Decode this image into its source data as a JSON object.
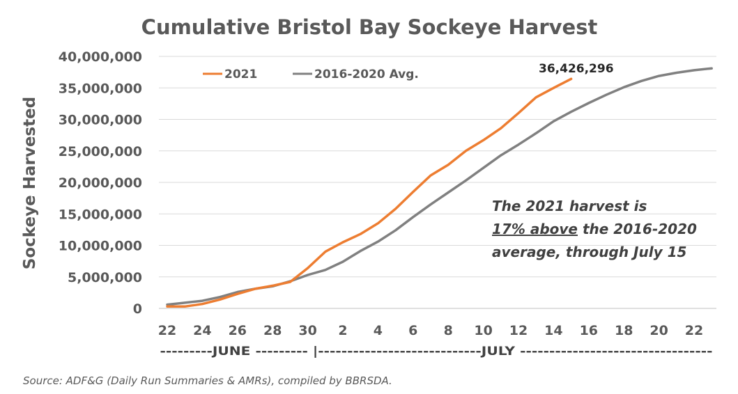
{
  "chart_data": {
    "type": "line",
    "title": "Cumulative Bristol Bay Sockeye Harvest",
    "ylabel": "Sockeye Harvested",
    "ylim": [
      0,
      40000000
    ],
    "y_ticks": [
      "0",
      "5,000,000",
      "10,000,000",
      "15,000,000",
      "20,000,000",
      "25,000,000",
      "30,000,000",
      "35,000,000",
      "40,000,000"
    ],
    "x_start": "June 22",
    "x_end": "July 23",
    "x_tick_labels": [
      "22",
      "24",
      "26",
      "28",
      "30",
      "2",
      "4",
      "6",
      "8",
      "10",
      "12",
      "14",
      "16",
      "18",
      "20",
      "22"
    ],
    "month_label": "---------JUNE --------- |----------------------------JULY ---------------------------------",
    "grid": "horizontal",
    "legend_position": "top-left",
    "series": [
      {
        "name": "2021",
        "color": "#ED7D31",
        "x": [
          "Jun 22",
          "Jun 23",
          "Jun 24",
          "Jun 25",
          "Jun 26",
          "Jun 27",
          "Jun 28",
          "Jun 29",
          "Jun 30",
          "Jul 1",
          "Jul 2",
          "Jul 3",
          "Jul 4",
          "Jul 5",
          "Jul 6",
          "Jul 7",
          "Jul 8",
          "Jul 9",
          "Jul 10",
          "Jul 11",
          "Jul 12",
          "Jul 13",
          "Jul 14",
          "Jul 15"
        ],
        "values": [
          300000,
          300000,
          700000,
          1400000,
          2300000,
          3100000,
          3600000,
          4200000,
          6400000,
          9000000,
          10500000,
          11800000,
          13500000,
          15800000,
          18500000,
          21100000,
          22800000,
          25000000,
          26700000,
          28600000,
          31000000,
          33500000,
          35000000,
          36426296
        ]
      },
      {
        "name": "2016-2020 Avg.",
        "color": "#808080",
        "x": [
          "Jun 22",
          "Jun 23",
          "Jun 24",
          "Jun 25",
          "Jun 26",
          "Jun 27",
          "Jun 28",
          "Jun 29",
          "Jun 30",
          "Jul 1",
          "Jul 2",
          "Jul 3",
          "Jul 4",
          "Jul 5",
          "Jul 6",
          "Jul 7",
          "Jul 8",
          "Jul 9",
          "Jul 10",
          "Jul 11",
          "Jul 12",
          "Jul 13",
          "Jul 14",
          "Jul 15",
          "Jul 16",
          "Jul 17",
          "Jul 18",
          "Jul 19",
          "Jul 20",
          "Jul 21",
          "Jul 22",
          "Jul 23"
        ],
        "values": [
          600000,
          900000,
          1200000,
          1800000,
          2600000,
          3100000,
          3500000,
          4300000,
          5300000,
          6100000,
          7400000,
          9100000,
          10600000,
          12400000,
          14500000,
          16500000,
          18400000,
          20300000,
          22300000,
          24300000,
          26000000,
          27800000,
          29700000,
          31200000,
          32600000,
          33900000,
          35100000,
          36100000,
          36900000,
          37400000,
          37800000,
          38100000
        ]
      }
    ],
    "end_label": "36,426,296",
    "annotation": {
      "line1": "The 2021 harvest is",
      "line2_underlined": "17% above",
      "line2_rest": " the 2016-2020",
      "line3": "average, through July 15"
    },
    "source": "Source: ADF&G (Daily Run Summaries & AMRs), compiled by BBRSDA."
  }
}
